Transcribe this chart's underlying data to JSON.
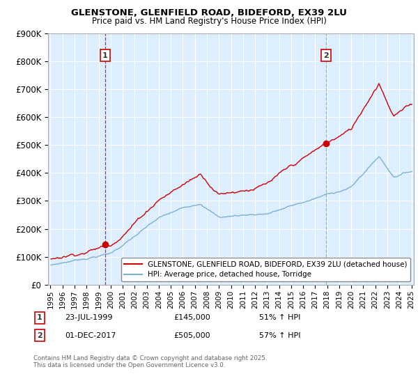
{
  "title1": "GLENSTONE, GLENFIELD ROAD, BIDEFORD, EX39 2LU",
  "title2": "Price paid vs. HM Land Registry's House Price Index (HPI)",
  "legend1": "GLENSTONE, GLENFIELD ROAD, BIDEFORD, EX39 2LU (detached house)",
  "legend2": "HPI: Average price, detached house, Torridge",
  "annotation1": {
    "num": "1",
    "date": "23-JUL-1999",
    "price": "£145,000",
    "hpi": "51% ↑ HPI"
  },
  "annotation2": {
    "num": "2",
    "date": "01-DEC-2017",
    "price": "£505,000",
    "hpi": "57% ↑ HPI"
  },
  "footnote": "Contains HM Land Registry data © Crown copyright and database right 2025.\nThis data is licensed under the Open Government Licence v3.0.",
  "property_color": "#cc0000",
  "hpi_color": "#7ab0d4",
  "vline1_color": "#cc0000",
  "vline2_color": "#7ab0d4",
  "plot_bg_color": "#ddeeff",
  "background_color": "#ffffff",
  "grid_color": "#ffffff",
  "ylim": [
    0,
    900000
  ],
  "yticks": [
    0,
    100000,
    200000,
    300000,
    400000,
    500000,
    600000,
    700000,
    800000,
    900000
  ],
  "ytick_labels": [
    "£0",
    "£100K",
    "£200K",
    "£300K",
    "£400K",
    "£500K",
    "£600K",
    "£700K",
    "£800K",
    "£900K"
  ],
  "xmin_year": 1995,
  "xmax_year": 2025,
  "xticks": [
    1995,
    1996,
    1997,
    1998,
    1999,
    2000,
    2001,
    2002,
    2003,
    2004,
    2005,
    2006,
    2007,
    2008,
    2009,
    2010,
    2011,
    2012,
    2013,
    2014,
    2015,
    2016,
    2017,
    2018,
    2019,
    2020,
    2021,
    2022,
    2023,
    2024,
    2025
  ],
  "vline1_x": 1999.55,
  "vline2_x": 2017.92,
  "marker1_x": 1999.55,
  "marker1_y": 145000,
  "marker2_x": 2017.92,
  "marker2_y": 505000
}
